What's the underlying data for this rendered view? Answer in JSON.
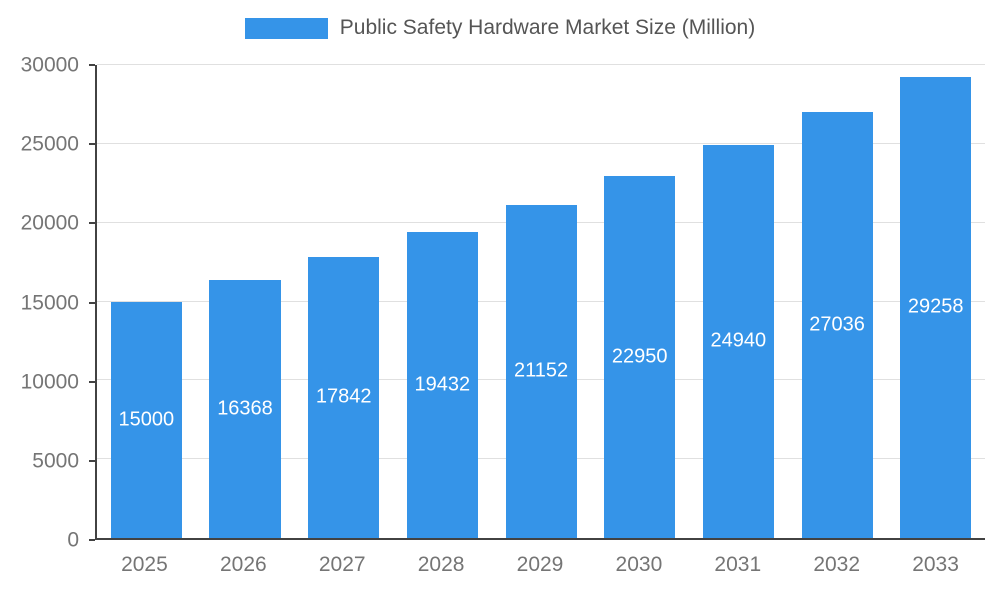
{
  "chart_data": {
    "type": "bar",
    "title": "Public Safety Hardware Market Size (Million)",
    "categories": [
      "2025",
      "2026",
      "2027",
      "2028",
      "2029",
      "2030",
      "2031",
      "2032",
      "2033"
    ],
    "values": [
      15000,
      16368,
      17842,
      19432,
      21152,
      22950,
      24940,
      27036,
      29258
    ],
    "xlabel": "",
    "ylabel": "",
    "ylim": [
      0,
      30000
    ],
    "yticks": [
      0,
      5000,
      10000,
      15000,
      20000,
      25000,
      30000
    ],
    "grid": true,
    "legend_position": "top",
    "bar_color": "#3594E8",
    "value_label_color": "#FFFFFF",
    "title_color": "#555555",
    "axis_label_color": "#757575",
    "gridline_color": "#E0E0E0",
    "axis_line_color": "#424242"
  }
}
